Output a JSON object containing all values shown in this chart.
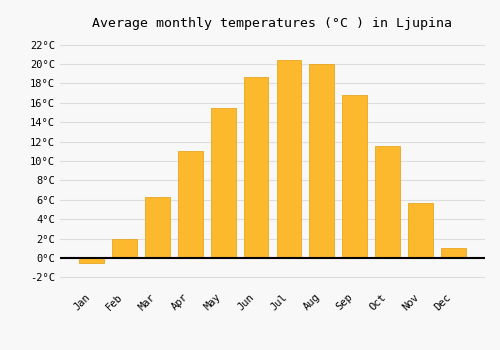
{
  "title": "Average monthly temperatures (°C ) in Ljupina",
  "months": [
    "Jan",
    "Feb",
    "Mar",
    "Apr",
    "May",
    "Jun",
    "Jul",
    "Aug",
    "Sep",
    "Oct",
    "Nov",
    "Dec"
  ],
  "values": [
    -0.5,
    2.0,
    6.3,
    11.0,
    15.5,
    18.7,
    20.4,
    20.0,
    16.8,
    11.5,
    5.7,
    1.0
  ],
  "bar_color": "#FDB92E",
  "bar_edge_color": "#E8A820",
  "background_color": "#F8F8F8",
  "plot_bg_color": "#F8F8F8",
  "grid_color": "#DDDDDD",
  "ylim": [
    -3,
    23
  ],
  "yticks": [
    -2,
    0,
    2,
    4,
    6,
    8,
    10,
    12,
    14,
    16,
    18,
    20,
    22
  ],
  "title_fontsize": 9.5,
  "tick_fontsize": 7.5,
  "zero_line_color": "#000000"
}
